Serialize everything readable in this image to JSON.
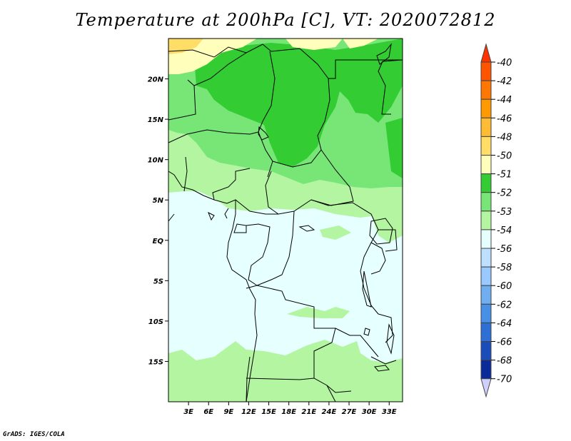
{
  "title": "Temperature at 200hPa [C], VT: 2020072812",
  "credit": "GrADS: IGES/COLA",
  "map": {
    "lat_labels": [
      "20N",
      "15N",
      "10N",
      "5N",
      "EQ",
      "5S",
      "10S",
      "15S"
    ],
    "lat_values": [
      20,
      15,
      10,
      5,
      0,
      -5,
      -10,
      -15
    ],
    "lon_labels": [
      "3E",
      "6E",
      "9E",
      "12E",
      "15E",
      "18E",
      "21E",
      "24E",
      "27E",
      "30E",
      "33E"
    ],
    "lon_values": [
      3,
      6,
      9,
      12,
      15,
      18,
      21,
      24,
      27,
      30,
      33
    ],
    "lat_range": [
      -20,
      25
    ],
    "lon_range": [
      0,
      35
    ]
  },
  "legend": {
    "labels": [
      "-40",
      "-42",
      "-44",
      "-46",
      "-48",
      "-50",
      "-51",
      "-52",
      "-53",
      "-54",
      "-56",
      "-58",
      "-60",
      "-62",
      "-64",
      "-66",
      "-68",
      "-70"
    ],
    "colors": [
      "#ff3300",
      "#ff5500",
      "#ff7700",
      "#ff9900",
      "#ffbb33",
      "#ffdd66",
      "#ffffbb",
      "#33cc33",
      "#77e677",
      "#b3f5a0",
      "#e6ffff",
      "#bfdfff",
      "#99c9ff",
      "#6fafef",
      "#4790e6",
      "#2e6fd6",
      "#1a4cba",
      "#0a2a99",
      "#050a66",
      "#d0d0ff"
    ]
  }
}
